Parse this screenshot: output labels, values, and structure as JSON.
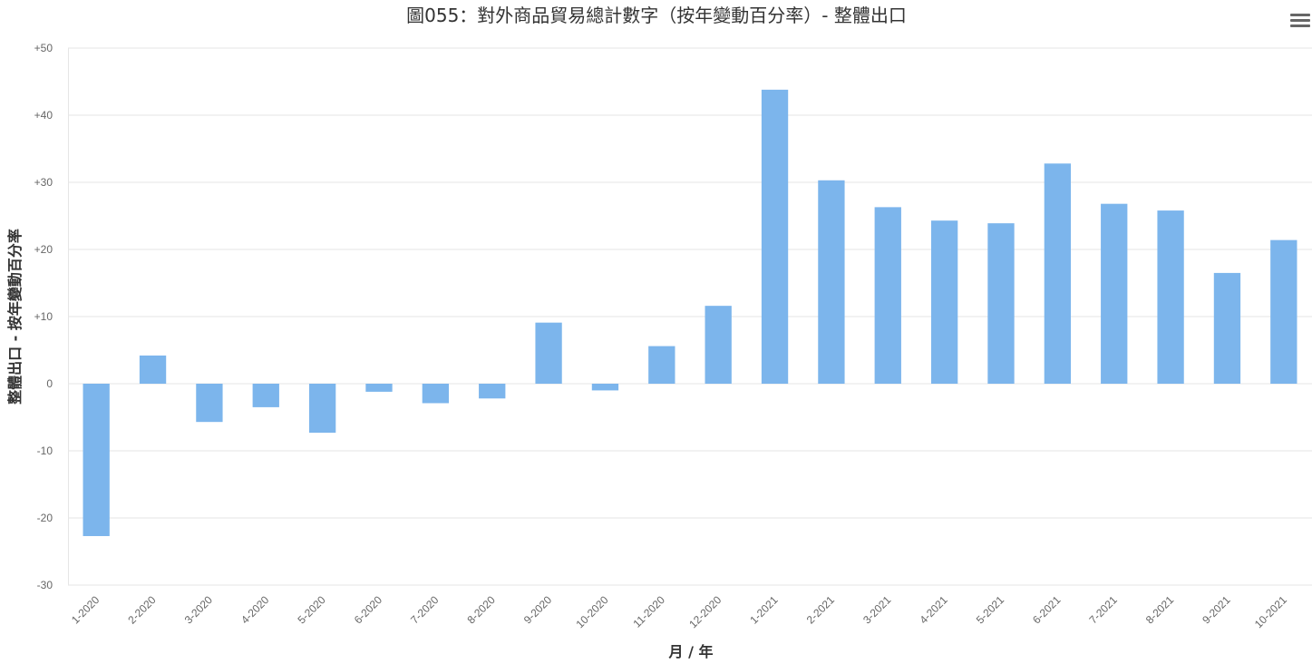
{
  "chart_data": {
    "type": "bar",
    "title": "圖055：對外商品貿易總計數字（按年變動百分率）- 整體出口",
    "xlabel": "月 / 年",
    "ylabel": "整體出口 - 按年變動百分率",
    "ylim": [
      -30,
      50
    ],
    "yticks": [
      "-30",
      "-20",
      "-10",
      "0",
      "+10",
      "+20",
      "+30",
      "+40",
      "+50"
    ],
    "grid": true,
    "color": "#7cb5ec",
    "categories": [
      "1-2020",
      "2-2020",
      "3-2020",
      "4-2020",
      "5-2020",
      "6-2020",
      "7-2020",
      "8-2020",
      "9-2020",
      "10-2020",
      "11-2020",
      "12-2020",
      "1-2021",
      "2-2021",
      "3-2021",
      "4-2021",
      "5-2021",
      "6-2021",
      "7-2021",
      "8-2021",
      "9-2021",
      "10-2021"
    ],
    "values": [
      -22.7,
      4.2,
      -5.7,
      -3.5,
      -7.3,
      -1.2,
      -2.9,
      -2.2,
      9.1,
      -1.0,
      5.6,
      11.6,
      43.8,
      30.3,
      26.3,
      24.3,
      23.9,
      32.8,
      26.8,
      25.8,
      16.5,
      21.4
    ]
  },
  "menu": {
    "icon": "hamburger-icon"
  }
}
